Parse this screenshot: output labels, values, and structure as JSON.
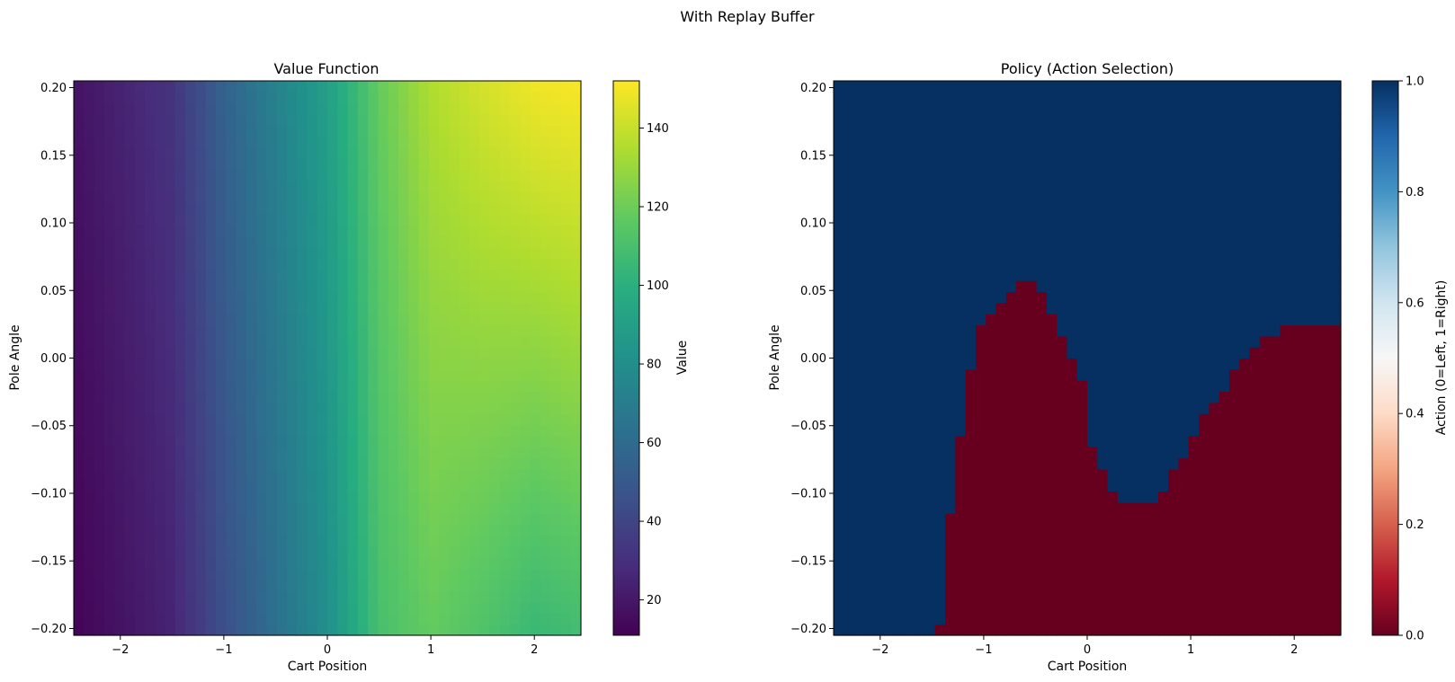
{
  "figure": {
    "suptitle": "With Replay Buffer"
  },
  "chart_data": [
    {
      "type": "heatmap",
      "title": "Value Function",
      "xlabel": "Cart Position",
      "ylabel": "Pole Angle",
      "xlim": [
        -2.45,
        2.45
      ],
      "ylim": [
        -0.205,
        0.205
      ],
      "x_ticks": [
        -2,
        -1,
        0,
        1,
        2
      ],
      "x_tick_labels": [
        "−2",
        "−1",
        "0",
        "1",
        "2"
      ],
      "y_ticks": [
        -0.2,
        -0.15,
        -0.1,
        -0.05,
        0.0,
        0.05,
        0.1,
        0.15,
        0.2
      ],
      "y_tick_labels": [
        "−0.20",
        "−0.15",
        "−0.10",
        "−0.05",
        "0.00",
        "0.05",
        "0.10",
        "0.15",
        "0.20"
      ],
      "colormap": "viridis",
      "grid": "50x50 cells",
      "pattern": "value rises from left to right; lower-right corner dips to about 105–115",
      "value_profile_bottom": {
        "x": [
          -2.45,
          -1.5,
          -1.0,
          0.0,
          0.5,
          1.0,
          1.5,
          2.0,
          2.45
        ],
        "v": [
          12,
          25,
          45,
          80,
          110,
          118,
          112,
          105,
          108
        ]
      },
      "value_profile_top": {
        "x": [
          -2.45,
          -1.5,
          -1.0,
          0.0,
          0.5,
          1.0,
          1.5,
          2.0,
          2.45
        ],
        "v": [
          18,
          32,
          55,
          90,
          118,
          135,
          143,
          149,
          151
        ]
      },
      "colorbar": {
        "label": "Value",
        "range": [
          11,
          152
        ],
        "ticks": [
          20,
          40,
          60,
          80,
          100,
          120,
          140
        ],
        "tick_labels": [
          "20",
          "40",
          "60",
          "80",
          "100",
          "120",
          "140"
        ]
      }
    },
    {
      "type": "heatmap",
      "title": "Policy (Action Selection)",
      "xlabel": "Cart Position",
      "ylabel": "Pole Angle",
      "xlim": [
        -2.45,
        2.45
      ],
      "ylim": [
        -0.205,
        0.205
      ],
      "x_ticks": [
        -2,
        -1,
        0,
        1,
        2
      ],
      "x_tick_labels": [
        "−2",
        "−1",
        "0",
        "1",
        "2"
      ],
      "y_ticks": [
        -0.2,
        -0.15,
        -0.1,
        -0.05,
        0.0,
        0.05,
        0.1,
        0.15,
        0.2
      ],
      "y_tick_labels": [
        "−0.20",
        "−0.15",
        "−0.10",
        "−0.05",
        "0.00",
        "0.05",
        "0.10",
        "0.15",
        "0.20"
      ],
      "colormap": "RdBu",
      "grid": "50x50 cells",
      "pattern": "action 0 (dark red) below the boundary, action 1 (dark blue) above",
      "boundary": {
        "x": [
          -2.45,
          -1.45,
          -1.4,
          -1.35,
          -1.25,
          -1.15,
          -1.05,
          -0.95,
          -0.85,
          -0.75,
          -0.65,
          -0.55,
          -0.45,
          -0.35,
          -0.25,
          -0.15,
          -0.05,
          0.05,
          0.15,
          0.25,
          0.4,
          0.55,
          0.7,
          0.8,
          0.9,
          1.0,
          1.1,
          1.2,
          1.3,
          1.4,
          1.5,
          1.6,
          1.7,
          1.8,
          2.0,
          2.2,
          2.45
        ],
        "y": [
          -0.205,
          -0.205,
          -0.197,
          -0.131,
          -0.066,
          -0.016,
          0.025,
          0.033,
          0.041,
          0.049,
          0.057,
          0.057,
          0.049,
          0.033,
          0.016,
          0.0,
          -0.016,
          -0.066,
          -0.082,
          -0.098,
          -0.107,
          -0.107,
          -0.107,
          -0.09,
          -0.074,
          -0.066,
          -0.049,
          -0.033,
          -0.025,
          -0.008,
          0.0,
          0.008,
          0.016,
          0.016,
          0.025,
          0.025,
          0.025
        ]
      },
      "colorbar": {
        "label": "Action (0=Left, 1=Right)",
        "range": [
          0,
          1
        ],
        "ticks": [
          0.0,
          0.2,
          0.4,
          0.6,
          0.8,
          1.0
        ],
        "tick_labels": [
          "0.0",
          "0.2",
          "0.4",
          "0.6",
          "0.8",
          "1.0"
        ]
      }
    }
  ]
}
